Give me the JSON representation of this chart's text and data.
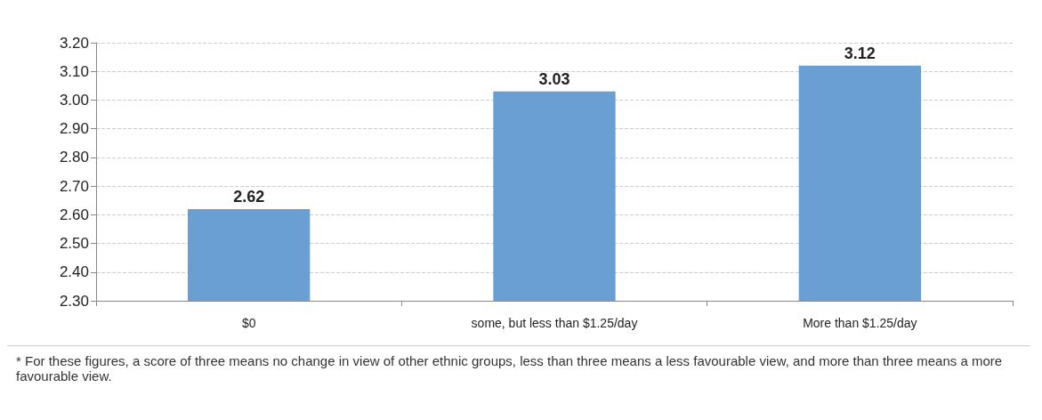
{
  "chart_data": {
    "type": "bar",
    "categories": [
      "$0",
      "some, but less than $1.25/day",
      "More than $1.25/day"
    ],
    "values": [
      2.62,
      3.03,
      3.12
    ],
    "color": "#6a9fd4",
    "data_labels": true,
    "ylim": [
      2.3,
      3.2
    ],
    "yticks": [
      {
        "value": 2.3,
        "label": "2.30"
      },
      {
        "value": 2.4,
        "label": "2.40"
      },
      {
        "value": 2.5,
        "label": "2.50"
      },
      {
        "value": 2.6,
        "label": "2.60"
      },
      {
        "value": 2.7,
        "label": "2.70"
      },
      {
        "value": 2.8,
        "label": "2.80"
      },
      {
        "value": 2.9,
        "label": "2.90"
      },
      {
        "value": 3.0,
        "label": "3.00"
      },
      {
        "value": 3.1,
        "label": "3.10"
      },
      {
        "value": 3.2,
        "label": "3.20"
      }
    ],
    "grid": "y",
    "annotations": [
      "* For these figures, a score of three means no change in view of other ethnic groups, less than three means a less favourable view, and more than three means a more favourable view."
    ]
  }
}
